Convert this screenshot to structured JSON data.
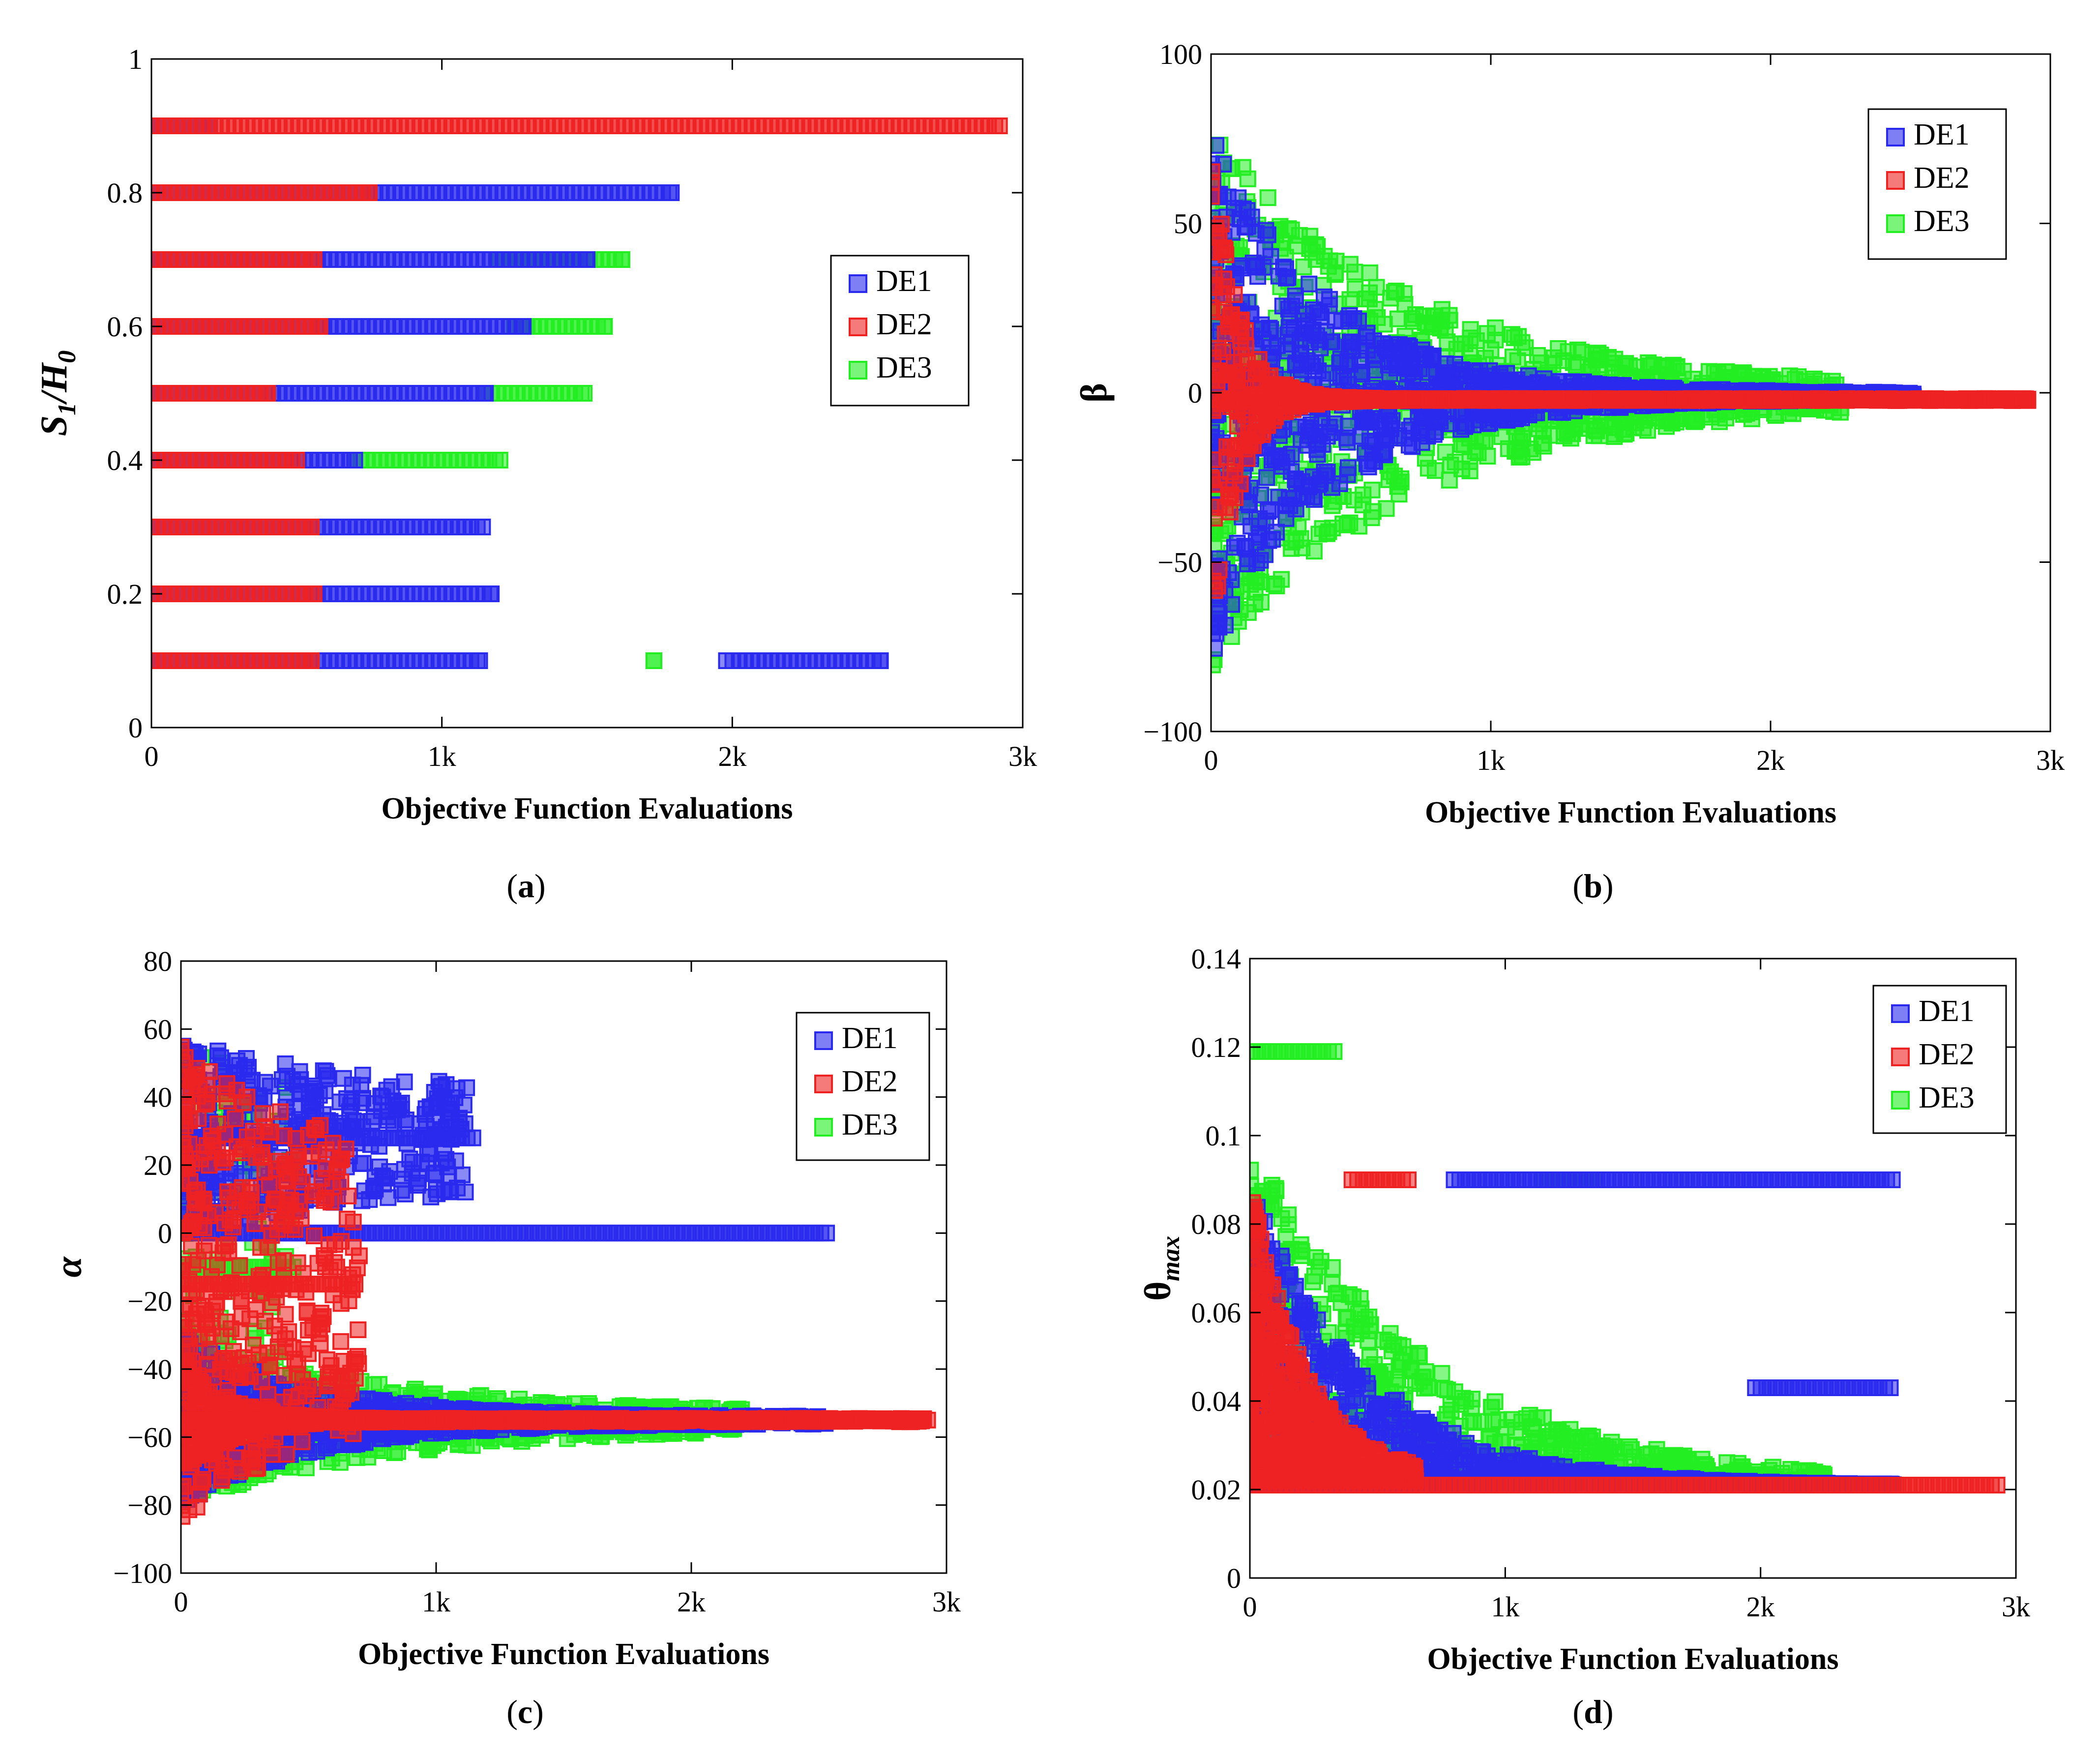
{
  "colors": {
    "DE1": "#2a2aee",
    "DE2": "#ee2222",
    "DE3": "#22ee22"
  },
  "chart_data": [
    {
      "id": "a",
      "type": "scatter",
      "caption_letter": "a",
      "caption_open": "(",
      "caption_close": ")",
      "ylabel_main": "S",
      "ylabel_sub1": "1",
      "ylabel_sep": "/H",
      "ylabel_sub2": "0",
      "xlabel": "Objective Function Evaluations",
      "xlim": [
        0,
        3000
      ],
      "ylim": [
        0,
        1
      ],
      "xticks": [
        {
          "v": 0,
          "label": "0"
        },
        {
          "v": 1000,
          "label": "1k"
        },
        {
          "v": 2000,
          "label": "2k"
        },
        {
          "v": 3000,
          "label": "3k"
        }
      ],
      "yticks": [
        {
          "v": 0,
          "label": "0"
        },
        {
          "v": 0.2,
          "label": "0.2"
        },
        {
          "v": 0.4,
          "label": "0.4"
        },
        {
          "v": 0.6,
          "label": "0.6"
        },
        {
          "v": 0.8,
          "label": "0.8"
        },
        {
          "v": 1,
          "label": "1"
        }
      ],
      "legend": {
        "entries": [
          "DE1",
          "DE2",
          "DE3"
        ],
        "placement": "right-middle"
      },
      "series": [
        {
          "name": "DE3",
          "bands": [
            {
              "y": 0.7,
              "x0": 1200,
              "x1": 1620
            },
            {
              "y": 0.6,
              "x0": 1250,
              "x1": 1560
            },
            {
              "y": 0.5,
              "x0": 1150,
              "x1": 1490
            },
            {
              "y": 0.4,
              "x0": 700,
              "x1": 1200
            },
            {
              "y": 0.1,
              "x0": 1730,
              "x1": 1730
            }
          ]
        },
        {
          "name": "DE1",
          "bands": [
            {
              "y": 0.9,
              "x0": 0,
              "x1": 200
            },
            {
              "y": 0.8,
              "x0": 0,
              "x1": 1790
            },
            {
              "y": 0.7,
              "x0": 0,
              "x1": 1500
            },
            {
              "y": 0.6,
              "x0": 0,
              "x1": 1280
            },
            {
              "y": 0.5,
              "x0": 0,
              "x1": 1150
            },
            {
              "y": 0.4,
              "x0": 0,
              "x1": 700
            },
            {
              "y": 0.3,
              "x0": 0,
              "x1": 1140
            },
            {
              "y": 0.2,
              "x0": 0,
              "x1": 1170
            },
            {
              "y": 0.1,
              "x0": 0,
              "x1": 1130
            },
            {
              "y": 0.1,
              "x0": 1980,
              "x1": 2510
            }
          ]
        },
        {
          "name": "DE2",
          "bands": [
            {
              "y": 0.9,
              "x0": 0,
              "x1": 2920
            },
            {
              "y": 0.8,
              "x0": 0,
              "x1": 750
            },
            {
              "y": 0.7,
              "x0": 0,
              "x1": 560
            },
            {
              "y": 0.6,
              "x0": 0,
              "x1": 580
            },
            {
              "y": 0.5,
              "x0": 0,
              "x1": 400
            },
            {
              "y": 0.4,
              "x0": 0,
              "x1": 500
            },
            {
              "y": 0.3,
              "x0": 0,
              "x1": 550
            },
            {
              "y": 0.2,
              "x0": 0,
              "x1": 560
            },
            {
              "y": 0.1,
              "x0": 0,
              "x1": 550
            }
          ]
        }
      ]
    },
    {
      "id": "b",
      "type": "scatter",
      "caption_letter": "b",
      "caption_open": "(",
      "caption_close": ")",
      "ylabel_main": "β",
      "xlabel": "Objective Function Evaluations",
      "xlim": [
        0,
        3000
      ],
      "ylim": [
        -100,
        100
      ],
      "xticks": [
        {
          "v": 0,
          "label": "0"
        },
        {
          "v": 1000,
          "label": "1k"
        },
        {
          "v": 2000,
          "label": "2k"
        },
        {
          "v": 3000,
          "label": "3k"
        }
      ],
      "yticks": [
        {
          "v": -100,
          "label": "−100"
        },
        {
          "v": -50,
          "label": "−50"
        },
        {
          "v": 0,
          "label": "0"
        },
        {
          "v": 50,
          "label": "50"
        },
        {
          "v": 100,
          "label": "100"
        }
      ],
      "legend": {
        "entries": [
          "DE1",
          "DE2",
          "DE3"
        ],
        "placement": "top-right"
      },
      "series": [
        {
          "name": "DE3",
          "spread": {
            "x0": 0,
            "x1": 2260,
            "center": -1,
            "amp0": 80,
            "amp1": 2,
            "tau": 700,
            "n": 900,
            "seed": 31
          }
        },
        {
          "name": "DE1",
          "spread": {
            "x0": 0,
            "x1": 2520,
            "center": -1,
            "amp0": 78,
            "amp1": 1,
            "tau": 420,
            "n": 1100,
            "seed": 17
          }
        },
        {
          "name": "DE2",
          "spread": {
            "x0": 0,
            "x1": 2920,
            "center": -2,
            "amp0": 80,
            "amp1": 0.3,
            "tau": 90,
            "n": 900,
            "seed": 5
          }
        }
      ]
    },
    {
      "id": "c",
      "type": "scatter",
      "caption_letter": "c",
      "caption_open": "(",
      "caption_close": ")",
      "ylabel_main": "α",
      "xlabel": "Objective Function Evaluations",
      "xlim": [
        0,
        3000
      ],
      "ylim": [
        -100,
        80
      ],
      "xticks": [
        {
          "v": 0,
          "label": "0"
        },
        {
          "v": 1000,
          "label": "1k"
        },
        {
          "v": 2000,
          "label": "2k"
        },
        {
          "v": 3000,
          "label": "3k"
        }
      ],
      "yticks": [
        {
          "v": -100,
          "label": "−100"
        },
        {
          "v": -80,
          "label": "−80"
        },
        {
          "v": -60,
          "label": "−60"
        },
        {
          "v": -40,
          "label": "−40"
        },
        {
          "v": -20,
          "label": "−20"
        },
        {
          "v": 0,
          "label": "0"
        },
        {
          "v": 20,
          "label": "20"
        },
        {
          "v": 40,
          "label": "40"
        },
        {
          "v": 60,
          "label": "60"
        },
        {
          "v": 80,
          "label": "80"
        }
      ],
      "legend": {
        "entries": [
          "DE1",
          "DE2",
          "DE3"
        ],
        "placement": "top-right"
      },
      "series": [
        {
          "name": "DE3",
          "spread": {
            "x0": 0,
            "x1": 2200,
            "center": -55,
            "amp0": 25,
            "amp1": 2,
            "tau": 800,
            "n": 700,
            "seed": 41
          }
        },
        {
          "name": "DE3",
          "spread": {
            "x0": 0,
            "x1": 450,
            "center": -10,
            "amp0": 70,
            "amp1": 40,
            "tau": 600,
            "n": 150,
            "seed": 43
          }
        },
        {
          "name": "DE1",
          "spread": {
            "x0": 0,
            "x1": 2530,
            "center": -55,
            "amp0": 25,
            "amp1": 1,
            "tau": 500,
            "n": 800,
            "seed": 23
          }
        },
        {
          "name": "DE1",
          "spread": {
            "x0": 0,
            "x1": 1150,
            "center": 28,
            "amp0": 28,
            "amp1": 12,
            "tau": 900,
            "n": 400,
            "seed": 29
          }
        },
        {
          "name": "DE1",
          "line": {
            "y": 0,
            "x0": 0,
            "x1": 2530
          }
        },
        {
          "name": "DE2",
          "spread": {
            "x0": 0,
            "x1": 700,
            "center": -15,
            "amp0": 70,
            "amp1": 35,
            "tau": 500,
            "n": 450,
            "seed": 7
          }
        },
        {
          "name": "DE2",
          "spread": {
            "x0": 0,
            "x1": 2930,
            "center": -55,
            "amp0": 22,
            "amp1": 0.5,
            "tau": 150,
            "n": 700,
            "seed": 9
          }
        }
      ]
    },
    {
      "id": "d",
      "type": "scatter",
      "caption_letter": "d",
      "caption_open": "(",
      "caption_close": ")",
      "ylabel_main": "θ",
      "ylabel_sub1": "max",
      "xlabel": "Objective Function Evaluations",
      "xlim": [
        0,
        3000
      ],
      "ylim": [
        0,
        0.14
      ],
      "xticks": [
        {
          "v": 0,
          "label": "0"
        },
        {
          "v": 1000,
          "label": "1k"
        },
        {
          "v": 2000,
          "label": "2k"
        },
        {
          "v": 3000,
          "label": "3k"
        }
      ],
      "yticks": [
        {
          "v": 0,
          "label": "0"
        },
        {
          "v": 0.02,
          "label": "0.02"
        },
        {
          "v": 0.04,
          "label": "0.04"
        },
        {
          "v": 0.06,
          "label": "0.06"
        },
        {
          "v": 0.08,
          "label": "0.08"
        },
        {
          "v": 0.1,
          "label": "0.1"
        },
        {
          "v": 0.12,
          "label": "0.12"
        },
        {
          "v": 0.14,
          "label": "0.14"
        }
      ],
      "legend": {
        "entries": [
          "DE1",
          "DE2",
          "DE3"
        ],
        "placement": "top-right"
      },
      "series": [
        {
          "name": "DE3",
          "decay": {
            "x0": 0,
            "x1": 2250,
            "floor": 0.021,
            "top": 0.1,
            "tau": 700,
            "n": 800,
            "seed": 51
          }
        },
        {
          "name": "DE3",
          "line": {
            "y": 0.119,
            "x0": 0,
            "x1": 350
          }
        },
        {
          "name": "DE3",
          "line": {
            "y": 0.09,
            "x0": 1150,
            "x1": 1350
          }
        },
        {
          "name": "DE1",
          "decay": {
            "x0": 0,
            "x1": 2520,
            "floor": 0.021,
            "top": 0.09,
            "tau": 450,
            "n": 1000,
            "seed": 61
          }
        },
        {
          "name": "DE1",
          "line": {
            "y": 0.09,
            "x0": 800,
            "x1": 2520
          }
        },
        {
          "name": "DE1",
          "line": {
            "y": 0.043,
            "x0": 1980,
            "x1": 2520
          }
        },
        {
          "name": "DE2",
          "decay": {
            "x0": 0,
            "x1": 650,
            "floor": 0.022,
            "top": 0.09,
            "tau": 220,
            "n": 800,
            "seed": 71
          }
        },
        {
          "name": "DE2",
          "line": {
            "y": 0.021,
            "x0": 0,
            "x1": 2930
          }
        },
        {
          "name": "DE2",
          "line": {
            "y": 0.09,
            "x0": 400,
            "x1": 620
          }
        }
      ]
    }
  ]
}
